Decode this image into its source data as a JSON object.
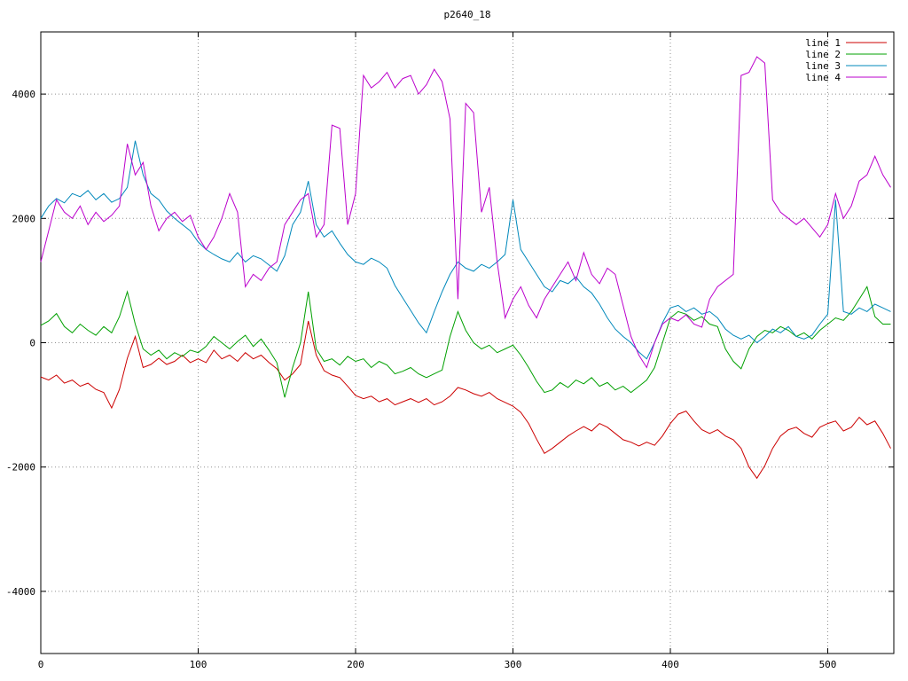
{
  "chart_data": {
    "type": "line",
    "title": "p2640_18",
    "xlabel": "",
    "ylabel": "",
    "xlim": [
      0,
      542
    ],
    "ylim": [
      -5000,
      5000
    ],
    "x_ticks": [
      0,
      100,
      200,
      300,
      400,
      500
    ],
    "y_ticks": [
      -4000,
      -2000,
      0,
      2000,
      4000
    ],
    "grid": true,
    "grid_style": "dotted",
    "legend_position": "top-right",
    "background_color": "#ffffff",
    "border_color": "#000000",
    "grid_color": "#909090",
    "x_start": 0,
    "x_step": 5,
    "series": [
      {
        "name": "line 1",
        "color": "#cc0000",
        "values": [
          -550,
          -600,
          -520,
          -650,
          -600,
          -700,
          -650,
          -750,
          -800,
          -1050,
          -750,
          -250,
          100,
          -400,
          -350,
          -250,
          -350,
          -300,
          -200,
          -320,
          -260,
          -320,
          -120,
          -260,
          -200,
          -300,
          -160,
          -260,
          -200,
          -320,
          -420,
          -600,
          -500,
          -350,
          350,
          -200,
          -450,
          -520,
          -560,
          -700,
          -850,
          -900,
          -860,
          -950,
          -900,
          -1000,
          -950,
          -900,
          -960,
          -900,
          -1000,
          -950,
          -860,
          -720,
          -760,
          -820,
          -860,
          -800,
          -900,
          -960,
          -1020,
          -1120,
          -1300,
          -1550,
          -1780,
          -1700,
          -1600,
          -1500,
          -1420,
          -1350,
          -1420,
          -1300,
          -1360,
          -1460,
          -1560,
          -1600,
          -1660,
          -1600,
          -1650,
          -1500,
          -1300,
          -1150,
          -1100,
          -1260,
          -1400,
          -1460,
          -1400,
          -1500,
          -1560,
          -1700,
          -2000,
          -2180,
          -1980,
          -1700,
          -1500,
          -1400,
          -1360,
          -1460,
          -1520,
          -1360,
          -1300,
          -1260,
          -1420,
          -1360,
          -1200,
          -1320,
          -1260,
          -1460,
          -1700
        ]
      },
      {
        "name": "line 2",
        "color": "#00a000",
        "values": [
          280,
          350,
          470,
          260,
          160,
          300,
          200,
          120,
          260,
          160,
          420,
          820,
          300,
          -100,
          -200,
          -120,
          -260,
          -160,
          -220,
          -120,
          -160,
          -60,
          100,
          0,
          -100,
          20,
          120,
          -60,
          60,
          -120,
          -320,
          -880,
          -400,
          0,
          820,
          -100,
          -300,
          -260,
          -360,
          -220,
          -300,
          -260,
          -400,
          -300,
          -360,
          -500,
          -460,
          -400,
          -500,
          -560,
          -500,
          -440,
          100,
          500,
          200,
          0,
          -100,
          -40,
          -160,
          -100,
          -40,
          -200,
          -400,
          -620,
          -800,
          -760,
          -640,
          -720,
          -600,
          -660,
          -560,
          -700,
          -640,
          -760,
          -700,
          -800,
          -700,
          -600,
          -400,
          0,
          400,
          500,
          460,
          360,
          420,
          300,
          260,
          -100,
          -300,
          -420,
          -100,
          100,
          200,
          160,
          260,
          200,
          100,
          160,
          60,
          200,
          300,
          400,
          360,
          500,
          700,
          900,
          420,
          300,
          300
        ]
      },
      {
        "name": "line 3",
        "color": "#0088bb",
        "values": [
          2000,
          2200,
          2320,
          2250,
          2400,
          2350,
          2450,
          2300,
          2400,
          2260,
          2320,
          2500,
          3250,
          2700,
          2400,
          2300,
          2120,
          2000,
          1900,
          1800,
          1620,
          1500,
          1420,
          1350,
          1300,
          1450,
          1300,
          1400,
          1350,
          1250,
          1150,
          1400,
          1900,
          2100,
          2600,
          1900,
          1700,
          1800,
          1600,
          1420,
          1300,
          1260,
          1360,
          1300,
          1200,
          920,
          720,
          520,
          320,
          160,
          500,
          820,
          1100,
          1300,
          1200,
          1150,
          1260,
          1200,
          1300,
          1420,
          2300,
          1500,
          1300,
          1100,
          900,
          820,
          1000,
          950,
          1060,
          900,
          800,
          620,
          400,
          220,
          100,
          0,
          -150,
          -260,
          0,
          320,
          560,
          600,
          500,
          560,
          460,
          500,
          400,
          220,
          120,
          60,
          120,
          0,
          100,
          220,
          160,
          260,
          100,
          60,
          120,
          300,
          460,
          2300,
          500,
          460,
          560,
          500,
          620,
          560,
          500
        ]
      },
      {
        "name": "line 4",
        "color": "#bb00cc",
        "values": [
          1300,
          1800,
          2300,
          2100,
          2000,
          2200,
          1900,
          2100,
          1950,
          2050,
          2200,
          3200,
          2700,
          2900,
          2200,
          1800,
          2000,
          2100,
          1950,
          2050,
          1700,
          1500,
          1700,
          2000,
          2400,
          2100,
          900,
          1100,
          1000,
          1200,
          1300,
          1900,
          2100,
          2300,
          2400,
          1700,
          1900,
          3500,
          3450,
          1900,
          2400,
          4300,
          4100,
          4200,
          4350,
          4100,
          4250,
          4300,
          4000,
          4150,
          4400,
          4200,
          3600,
          700,
          3850,
          3700,
          2100,
          2500,
          1300,
          400,
          700,
          900,
          600,
          400,
          700,
          900,
          1100,
          1300,
          1000,
          1450,
          1100,
          950,
          1200,
          1100,
          600,
          100,
          -200,
          -400,
          0,
          300,
          400,
          350,
          450,
          300,
          250,
          700,
          900,
          1000,
          1100,
          4300,
          4350,
          4600,
          4500,
          2300,
          2100,
          2000,
          1900,
          2000,
          1850,
          1700,
          1900,
          2400,
          2000,
          2200,
          2600,
          2700,
          3000,
          2700,
          2500
        ]
      }
    ]
  }
}
